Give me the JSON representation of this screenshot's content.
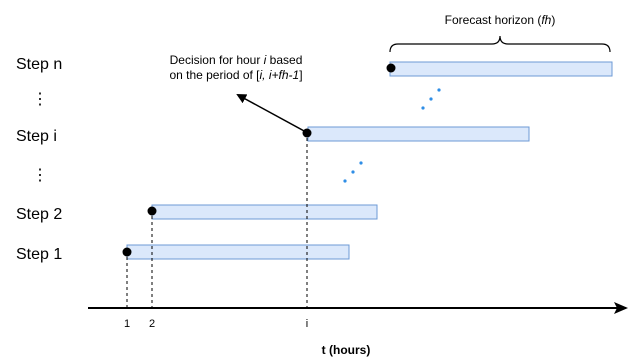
{
  "steps": [
    {
      "label": "Step n"
    },
    {
      "label": "Step i"
    },
    {
      "label": "Step 2"
    },
    {
      "label": "Step 1"
    }
  ],
  "vdots": "⋮",
  "ticks": [
    "1",
    "2",
    "i"
  ],
  "axis_title": "t (hours)",
  "horizon": {
    "prefix": "Forecast horizon (",
    "var": "fh",
    "suffix": ")"
  },
  "annotation": {
    "line1_prefix": "Decision for hour ",
    "line1_var": "i",
    "line1_suffix": " based",
    "line2_prefix": "on the period of  [",
    "line2_var": "i, i+fh-1",
    "line2_suffix": "]"
  },
  "colors": {
    "bar_fill": "#dbe8fb",
    "bar_stroke": "#6d9ad6",
    "dot_fill": "#000000",
    "dots_blue": "#2f8ee6"
  }
}
